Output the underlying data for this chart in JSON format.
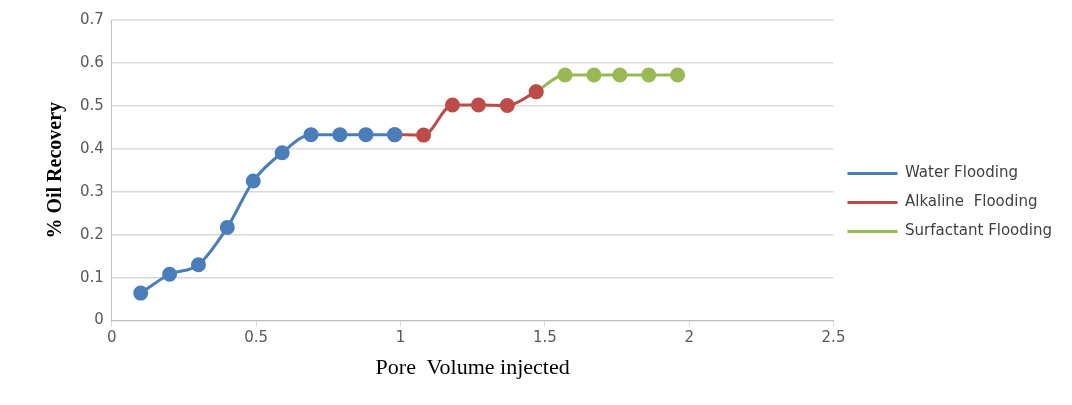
{
  "chart_data": {
    "type": "line",
    "xlabel": "Pore  Volume injected",
    "ylabel": "% Oil Recovery",
    "xlim": [
      0,
      2.5
    ],
    "xticks": [
      0,
      0.5,
      1,
      1.5,
      2,
      2.5
    ],
    "ylim": [
      0,
      0.7
    ],
    "yticks": [
      0,
      0.1,
      0.2,
      0.3,
      0.4,
      0.5,
      0.6,
      0.7
    ],
    "grid": "y",
    "legend": "right",
    "marker": "circle",
    "line_style": "solid",
    "series": [
      {
        "name": "Water Flooding",
        "color": "#4a7ebb",
        "x": [
          0.1,
          0.2,
          0.3,
          0.4,
          0.49,
          0.59,
          0.69,
          0.79,
          0.88,
          0.98
        ],
        "values": [
          0.064,
          0.108,
          0.13,
          0.217,
          0.325,
          0.391,
          0.433,
          0.433,
          0.433,
          0.433
        ]
      },
      {
        "name": "Alkaline  Flooding",
        "color": "#be4b48",
        "x": [
          0.98,
          1.08,
          1.18,
          1.27,
          1.37,
          1.47
        ],
        "values": [
          0.433,
          0.432,
          0.502,
          0.502,
          0.501,
          0.533
        ]
      },
      {
        "name": "Surfactant Flooding",
        "color": "#98b954",
        "x": [
          1.47,
          1.57,
          1.67,
          1.76,
          1.86,
          1.96
        ],
        "values": [
          0.533,
          0.572,
          0.572,
          0.572,
          0.572,
          0.572
        ]
      }
    ]
  }
}
